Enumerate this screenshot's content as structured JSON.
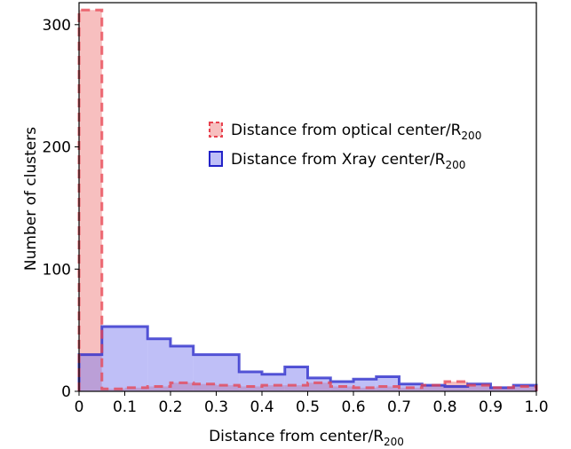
{
  "chart_data": {
    "type": "bar",
    "title": "",
    "xlabel": "Distance from center/R",
    "xlabel_sub": "200",
    "ylabel": "Number of clusters",
    "xlim": [
      0,
      1.0
    ],
    "ylim": [
      0,
      318
    ],
    "bin_width": 0.05,
    "x_ticks": [
      0,
      0.1,
      0.2,
      0.3,
      0.4,
      0.5,
      0.6,
      0.7,
      0.8,
      0.9,
      1.0
    ],
    "x_tick_labels": [
      "0",
      "0.1",
      "0.2",
      "0.3",
      "0.4",
      "0.5",
      "0.6",
      "0.7",
      "0.8",
      "0.9",
      "1.0"
    ],
    "y_ticks": [
      0,
      100,
      200,
      300
    ],
    "y_tick_labels": [
      "0",
      "100",
      "200",
      "300"
    ],
    "legend_position": "center-right",
    "grid": false,
    "series": [
      {
        "name": "Distance from optical center/R",
        "name_sub": "200",
        "color": "#f08080",
        "edge_color": "#e8424f",
        "style": "dashed",
        "bin_edges": [
          0,
          0.05,
          0.1,
          0.15,
          0.2,
          0.25,
          0.3,
          0.35,
          0.4,
          0.45,
          0.5,
          0.55,
          0.6,
          0.65,
          0.7,
          0.75,
          0.8,
          0.85,
          0.9,
          0.95,
          1.0
        ],
        "values": [
          312,
          2,
          3,
          4,
          7,
          6,
          5,
          4,
          5,
          5,
          7,
          4,
          3,
          4,
          3,
          5,
          8,
          5,
          3,
          4
        ]
      },
      {
        "name": "Distance from Xray center/R",
        "name_sub": "200",
        "color": "#8080f0",
        "edge_color": "#2323c8",
        "style": "solid",
        "bin_edges": [
          0,
          0.05,
          0.1,
          0.15,
          0.2,
          0.25,
          0.3,
          0.35,
          0.4,
          0.45,
          0.5,
          0.55,
          0.6,
          0.65,
          0.7,
          0.75,
          0.8,
          0.85,
          0.9,
          0.95,
          1.0
        ],
        "values": [
          30,
          53,
          53,
          43,
          37,
          30,
          30,
          16,
          14,
          20,
          11,
          8,
          10,
          12,
          6,
          5,
          4,
          6,
          3,
          5
        ]
      }
    ]
  }
}
